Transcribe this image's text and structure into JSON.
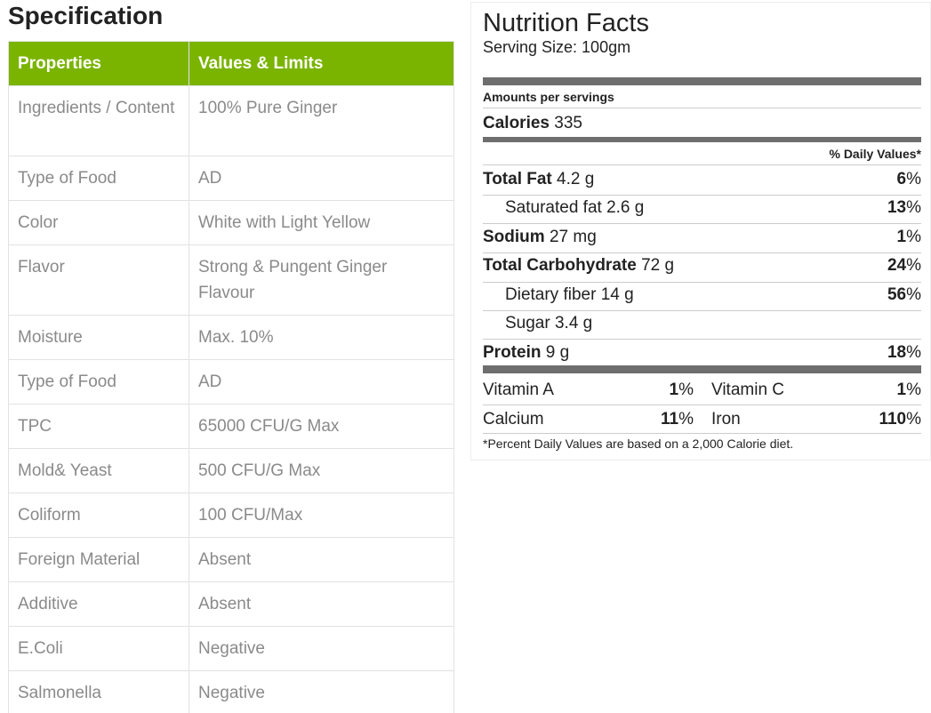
{
  "specification": {
    "title": "Specification",
    "headers": [
      "Properties",
      "Values & Limits"
    ],
    "rows": [
      [
        "Ingredients / Content",
        "100% Pure Ginger"
      ],
      [
        "Type of Food",
        "AD"
      ],
      [
        "Color",
        "White with Light Yellow"
      ],
      [
        "Flavor",
        "Strong & Pungent Ginger Flavour"
      ],
      [
        "Moisture",
        "Max. 10%"
      ],
      [
        "Type of Food",
        "AD"
      ],
      [
        "TPC",
        "65000 CFU/G Max"
      ],
      [
        "Mold& Yeast",
        "500 CFU/G Max"
      ],
      [
        "Coliform",
        "100 CFU/Max"
      ],
      [
        "Foreign Material",
        "Absent"
      ],
      [
        "Additive",
        "Absent"
      ],
      [
        "E.Coli",
        "Negative"
      ],
      [
        "Salmonella",
        "Negative"
      ]
    ],
    "header_color": "#7ab401"
  },
  "nutrition": {
    "title": "Nutrition Facts",
    "serving": "Serving Size: 100gm",
    "amounts_label": "Amounts per servings",
    "calories_label": "Calories",
    "calories_value": "335",
    "dv_header": "% Daily Values*",
    "nutrients": [
      {
        "name": "Total Fat",
        "amount": "4.2 g",
        "pct_num": "6",
        "pct_sign": "%"
      },
      {
        "name": "Saturated fat",
        "amount": "2.6 g",
        "pct_num": "13",
        "pct_sign": "%"
      },
      {
        "name": "Sodium",
        "amount": "27 mg",
        "pct_num": "1",
        "pct_sign": "%"
      },
      {
        "name": "Total Carbohydrate",
        "amount": "72 g",
        "pct_num": "24",
        "pct_sign": "%"
      },
      {
        "name": "Dietary fiber",
        "amount": "14 g",
        "pct_num": "56",
        "pct_sign": "%"
      },
      {
        "name": "Sugar",
        "amount": "3.4 g"
      },
      {
        "name": "Protein",
        "amount": "9 g",
        "pct_num": "18",
        "pct_sign": "%"
      }
    ],
    "vitamins": [
      {
        "name": "Vitamin A",
        "pct_num": "1",
        "pct_sign": "%"
      },
      {
        "name": "Vitamin C",
        "pct_num": "1",
        "pct_sign": "%"
      },
      {
        "name": "Calcium",
        "pct_num": "11",
        "pct_sign": "%"
      },
      {
        "name": "Iron",
        "pct_num": "110",
        "pct_sign": "%"
      }
    ],
    "footnote": "*Percent Daily Values are based on a 2,000 Calorie diet."
  }
}
